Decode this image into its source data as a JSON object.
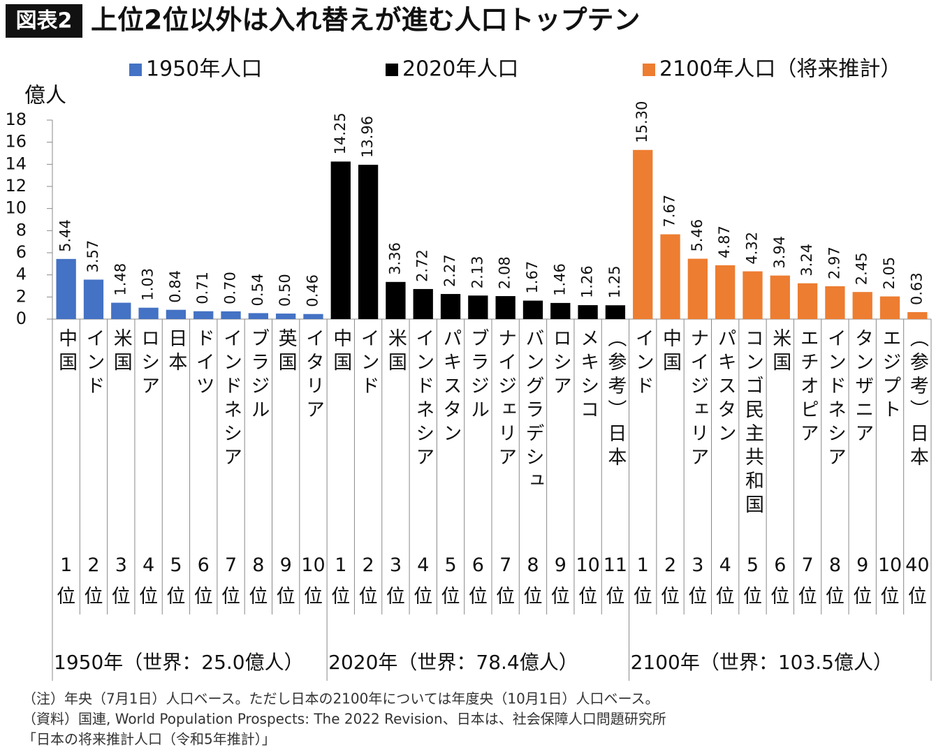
{
  "chart_data": {
    "type": "bar",
    "badge": "図表2",
    "title": "上位2位以外は入れ替えが進む人口トップテン",
    "y_label": "億人",
    "ylim": [
      0,
      18
    ],
    "yticks": [
      0,
      2,
      4,
      6,
      8,
      10,
      12,
      14,
      16,
      18
    ],
    "groups": [
      {
        "name": "1950年人口",
        "color": "#4472c4",
        "caption": "1950年（世界：25.0億人）",
        "categories": [
          "中国",
          "インド",
          "米国",
          "ロシア",
          "日本",
          "ドイツ",
          "インドネシア",
          "ブラジル",
          "英国",
          "イタリア"
        ],
        "ranks": [
          "1位",
          "2位",
          "3位",
          "4位",
          "5位",
          "6位",
          "7位",
          "8位",
          "9位",
          "10位"
        ],
        "values": [
          5.44,
          3.57,
          1.48,
          1.03,
          0.84,
          0.71,
          0.7,
          0.54,
          0.5,
          0.46
        ],
        "value_labels": [
          "5.44",
          "3.57",
          "1.48",
          "1.03",
          "0.84",
          "0.71",
          "0.70",
          "0.54",
          "0.50",
          "0.46"
        ]
      },
      {
        "name": "2020年人口",
        "color": "#000000",
        "caption": "2020年（世界：78.4億人）",
        "categories": [
          "中国",
          "インド",
          "米国",
          "インドネシア",
          "パキスタン",
          "ブラジル",
          "ナイジェリア",
          "バングラデシュ",
          "ロシア",
          "メキシコ",
          "（参考）日本"
        ],
        "ranks": [
          "1位",
          "2位",
          "3位",
          "4位",
          "5位",
          "6位",
          "7位",
          "8位",
          "9位",
          "10位",
          "11位"
        ],
        "values": [
          14.25,
          13.96,
          3.36,
          2.72,
          2.27,
          2.13,
          2.08,
          1.67,
          1.46,
          1.26,
          1.25
        ],
        "value_labels": [
          "14.25",
          "13.96",
          "3.36",
          "2.72",
          "2.27",
          "2.13",
          "2.08",
          "1.67",
          "1.46",
          "1.26",
          "1.25"
        ]
      },
      {
        "name": "2100年人口（将来推計）",
        "color": "#ed7d31",
        "caption": "2100年（世界：103.5億人）",
        "categories": [
          "インド",
          "中国",
          "ナイジェリア",
          "パキスタン",
          "コンゴ民主共和国",
          "米国",
          "エチオピア",
          "インドネシア",
          "タンザニア",
          "エジプト",
          "（参考）日本"
        ],
        "ranks": [
          "1位",
          "2位",
          "3位",
          "4位",
          "5位",
          "6位",
          "7位",
          "8位",
          "9位",
          "10位",
          "40位"
        ],
        "values": [
          15.3,
          7.67,
          5.46,
          4.87,
          4.32,
          3.94,
          3.24,
          2.97,
          2.45,
          2.05,
          0.63
        ],
        "value_labels": [
          "15.30",
          "7.67",
          "5.46",
          "4.87",
          "4.32",
          "3.94",
          "3.24",
          "2.97",
          "2.45",
          "2.05",
          "0.63"
        ]
      }
    ],
    "notes": [
      "（注）年央（7月1日）人口ベース。ただし日本の2100年については年度央（10月1日）人口ベース。",
      "（資料）国連, World Population Prospects: The 2022 Revision、日本は、社会保障人口問題研究所",
      "「日本の将来推計人口（令和5年推計）」"
    ]
  }
}
